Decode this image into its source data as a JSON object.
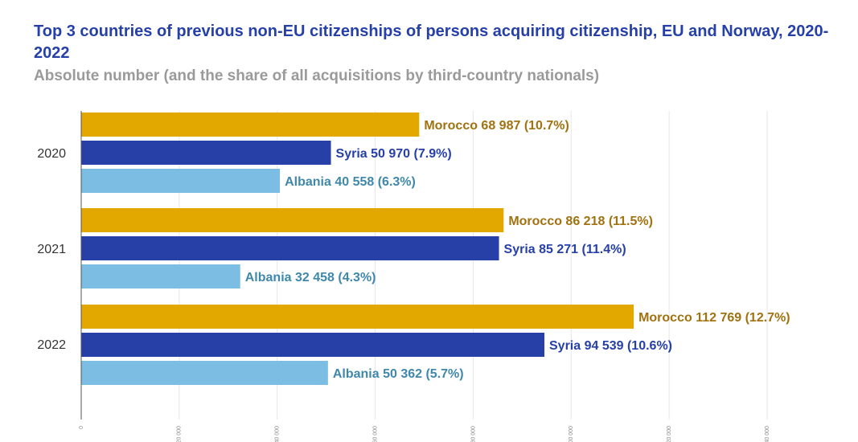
{
  "chart_data": {
    "type": "bar",
    "orientation": "horizontal",
    "title": "Top 3 countries of previous non-EU citizenships of persons acquiring citizenship, EU and Norway, 2020-2022",
    "subtitle": "Absolute number (and the share of all acquisitions by third-country nationals)",
    "categories": [
      "2020",
      "2021",
      "2022"
    ],
    "xlim": [
      0,
      140000
    ],
    "x_ticks": [
      {
        "value": 0,
        "label": "0"
      },
      {
        "value": 20000,
        "label": "20 000"
      },
      {
        "value": 40000,
        "label": "40 000"
      },
      {
        "value": 60000,
        "label": "60 000"
      },
      {
        "value": 80000,
        "label": "80 000"
      },
      {
        "value": 100000,
        "label": "100 000"
      },
      {
        "value": 120000,
        "label": "120 000"
      },
      {
        "value": 140000,
        "label": "140 000"
      }
    ],
    "grid": true,
    "bars": [
      {
        "year": "2020",
        "country": "Morocco",
        "value": 68987,
        "label": "Morocco 68 987 (10.7%)",
        "color": "#e3a800",
        "label_color": "#a07210"
      },
      {
        "year": "2020",
        "country": "Syria",
        "value": 50970,
        "label": "Syria 50 970 (7.9%)",
        "color": "#2640a8",
        "label_color": "#2640a8"
      },
      {
        "year": "2020",
        "country": "Albania",
        "value": 40558,
        "label": "Albania 40 558 (6.3%)",
        "color": "#7bbde3",
        "label_color": "#3f88ab"
      },
      {
        "year": "2021",
        "country": "Morocco",
        "value": 86218,
        "label": "Morocco 86 218 (11.5%)",
        "color": "#e3a800",
        "label_color": "#a07210"
      },
      {
        "year": "2021",
        "country": "Syria",
        "value": 85271,
        "label": "Syria 85 271 (11.4%)",
        "color": "#2640a8",
        "label_color": "#2640a8"
      },
      {
        "year": "2021",
        "country": "Albania",
        "value": 32458,
        "label": "Albania 32 458 (4.3%)",
        "color": "#7bbde3",
        "label_color": "#3f88ab"
      },
      {
        "year": "2022",
        "country": "Morocco",
        "value": 112769,
        "label": "Morocco 112 769 (12.7%)",
        "color": "#e3a800",
        "label_color": "#a07210"
      },
      {
        "year": "2022",
        "country": "Syria",
        "value": 94539,
        "label": "Syria 94 539 (10.6%)",
        "color": "#2640a8",
        "label_color": "#2640a8"
      },
      {
        "year": "2022",
        "country": "Albania",
        "value": 50362,
        "label": "Albania 50 362 (5.7%)",
        "color": "#7bbde3",
        "label_color": "#3f88ab"
      }
    ]
  }
}
